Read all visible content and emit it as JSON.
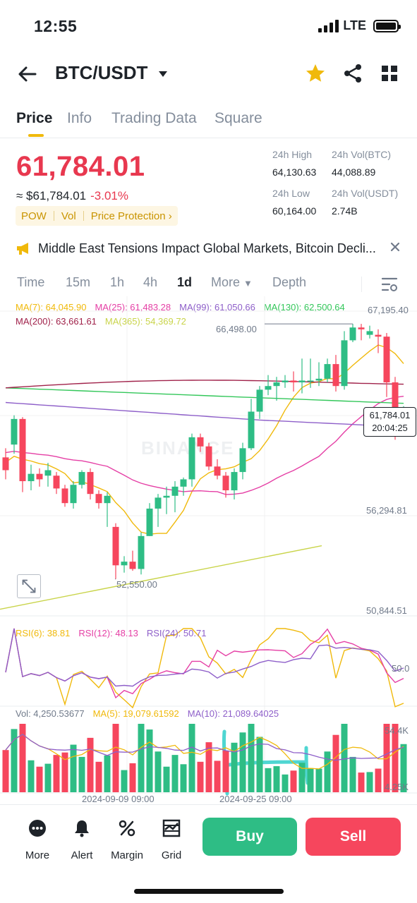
{
  "status": {
    "time": "12:55",
    "network": "LTE"
  },
  "header": {
    "title": "BTC/USDT"
  },
  "tabs": [
    {
      "label": "Price"
    },
    {
      "label": "Info"
    },
    {
      "label": "Trading Data"
    },
    {
      "label": "Square"
    }
  ],
  "price": {
    "last": "61,784.01",
    "approx": "≈ $61,784.01",
    "change": "-3.01%",
    "tags": [
      "POW",
      "Vol",
      "Price Protection ›"
    ]
  },
  "stats": {
    "high_label": "24h High",
    "high_value": "64,130.63",
    "vol_btc_label": "24h Vol(BTC)",
    "vol_btc_value": "44,088.89",
    "low_label": "24h Low",
    "low_value": "60,164.00",
    "vol_usdt_label": "24h Vol(USDT)",
    "vol_usdt_value": "2.74B"
  },
  "news": {
    "text": "Middle East Tensions Impact Global Markets, Bitcoin Decli..."
  },
  "intervals": [
    "Time",
    "15m",
    "1h",
    "4h",
    "1d",
    "More",
    "Depth"
  ],
  "ma": {
    "ma7": "MA(7): 64,045.90",
    "ma25": "MA(25): 61,483.28",
    "ma99": "MA(99): 61,050.66",
    "ma130": "MA(130): 62,500.64",
    "ma200": "MA(200): 63,661.61",
    "ma365": "MA(365): 54,369.72"
  },
  "colors": {
    "up": "#2ebd85",
    "down": "#f6465d",
    "ma7": "#f0b90b",
    "ma25": "#e53fa5",
    "ma99": "#8e5fc9",
    "ma130": "#33c75a",
    "ma200": "#a0224a",
    "ma365": "#c9d44a",
    "annotation": "#4fd6d2"
  },
  "chart_labels": {
    "y_top": "67,195.40",
    "y_mid": "56,294.81",
    "y_bottom": "50,844.51",
    "high_mark": "66,498.00",
    "low_mark": "52,550.00",
    "last_price": "61,784.01",
    "countdown": "20:04:25",
    "watermark": "BINANCE"
  },
  "rsi": {
    "rsi6": "RSI(6): 38.81",
    "rsi12": "RSI(12): 48.13",
    "rsi24": "RSI(24): 50.71",
    "axis": "50.0"
  },
  "volume": {
    "vol": "Vol: 4,250.53677",
    "ma5": "MA(5): 19,079.61592",
    "ma10": "MA(10): 21,089.64025",
    "axis_top": "54.4K",
    "axis_bottom": "4.25K"
  },
  "x_axis": [
    "2024-09-09 09:00",
    "2024-09-25 09:00"
  ],
  "chart_data": {
    "type": "candlestick",
    "candles": [
      {
        "o": 59200,
        "c": 58500,
        "h": 59700,
        "l": 58000
      },
      {
        "o": 59900,
        "c": 61300,
        "h": 61500,
        "l": 59400
      },
      {
        "o": 61300,
        "c": 57900,
        "h": 61400,
        "l": 57300
      },
      {
        "o": 57900,
        "c": 58300,
        "h": 58800,
        "l": 57400
      },
      {
        "o": 58300,
        "c": 58000,
        "h": 58600,
        "l": 57600
      },
      {
        "o": 58200,
        "c": 58500,
        "h": 58900,
        "l": 57600
      },
      {
        "o": 58200,
        "c": 57500,
        "h": 58400,
        "l": 57200
      },
      {
        "o": 57500,
        "c": 56700,
        "h": 57700,
        "l": 56500
      },
      {
        "o": 56700,
        "c": 57700,
        "h": 57900,
        "l": 56400
      },
      {
        "o": 57700,
        "c": 58400,
        "h": 58500,
        "l": 57500
      },
      {
        "o": 58400,
        "c": 57200,
        "h": 58600,
        "l": 56900
      },
      {
        "o": 57200,
        "c": 56700,
        "h": 57400,
        "l": 56400
      },
      {
        "o": 56700,
        "c": 57100,
        "h": 57300,
        "l": 55400
      },
      {
        "o": 55400,
        "c": 53300,
        "h": 55600,
        "l": 52550
      },
      {
        "o": 53300,
        "c": 53500,
        "h": 53800,
        "l": 52900
      },
      {
        "o": 53500,
        "c": 53100,
        "h": 54100,
        "l": 53000
      },
      {
        "o": 53100,
        "c": 54900,
        "h": 55100,
        "l": 52800
      },
      {
        "o": 54900,
        "c": 56400,
        "h": 56700,
        "l": 54900
      },
      {
        "o": 56400,
        "c": 57000,
        "h": 57200,
        "l": 55400
      },
      {
        "o": 57000,
        "c": 57100,
        "h": 57600,
        "l": 56100
      },
      {
        "o": 57100,
        "c": 57600,
        "h": 57900,
        "l": 56200
      },
      {
        "o": 57600,
        "c": 58000,
        "h": 58100,
        "l": 57100
      },
      {
        "o": 58000,
        "c": 60300,
        "h": 60500,
        "l": 57600
      },
      {
        "o": 60300,
        "c": 59800,
        "h": 60500,
        "l": 59500
      },
      {
        "o": 59800,
        "c": 58700,
        "h": 60000,
        "l": 58500
      },
      {
        "o": 58700,
        "c": 58200,
        "h": 59100,
        "l": 58000
      },
      {
        "o": 58200,
        "c": 57400,
        "h": 58400,
        "l": 57000
      },
      {
        "o": 57400,
        "c": 58400,
        "h": 58600,
        "l": 56900
      },
      {
        "o": 58400,
        "c": 59700,
        "h": 60000,
        "l": 58000
      },
      {
        "o": 59700,
        "c": 61700,
        "h": 62400,
        "l": 59600
      },
      {
        "o": 61700,
        "c": 62900,
        "h": 63100,
        "l": 61300
      },
      {
        "o": 62900,
        "c": 63100,
        "h": 63700,
        "l": 62600
      },
      {
        "o": 63100,
        "c": 63300,
        "h": 63600,
        "l": 62300
      },
      {
        "o": 63300,
        "c": 63400,
        "h": 63700,
        "l": 63000
      },
      {
        "o": 63400,
        "c": 63300,
        "h": 63900,
        "l": 62800
      },
      {
        "o": 63300,
        "c": 63400,
        "h": 64600,
        "l": 62700
      },
      {
        "o": 63400,
        "c": 63400,
        "h": 64600,
        "l": 63000
      },
      {
        "o": 63400,
        "c": 63500,
        "h": 64400,
        "l": 63100
      },
      {
        "o": 63500,
        "c": 64300,
        "h": 64600,
        "l": 63300
      },
      {
        "o": 64300,
        "c": 63100,
        "h": 64800,
        "l": 62800
      },
      {
        "o": 63100,
        "c": 65600,
        "h": 66100,
        "l": 62900
      },
      {
        "o": 65600,
        "c": 66300,
        "h": 66498,
        "l": 65500
      },
      {
        "o": 66300,
        "c": 66200,
        "h": 66498,
        "l": 65600
      },
      {
        "o": 65900,
        "c": 66100,
        "h": 66400,
        "l": 65700
      },
      {
        "o": 65900,
        "c": 65800,
        "h": 66200,
        "l": 64900
      },
      {
        "o": 65800,
        "c": 63300,
        "h": 66000,
        "l": 62500
      },
      {
        "o": 63300,
        "c": 60800,
        "h": 63600,
        "l": 60164
      },
      {
        "o": 60800,
        "c": 61784,
        "h": 62000,
        "l": 60400
      }
    ],
    "y_axis_labels": [
      "67,195.40",
      "56,294.81",
      "50,844.51"
    ],
    "x_labels": [
      "2024-09-09 09:00",
      "2024-09-25 09:00"
    ]
  }
}
